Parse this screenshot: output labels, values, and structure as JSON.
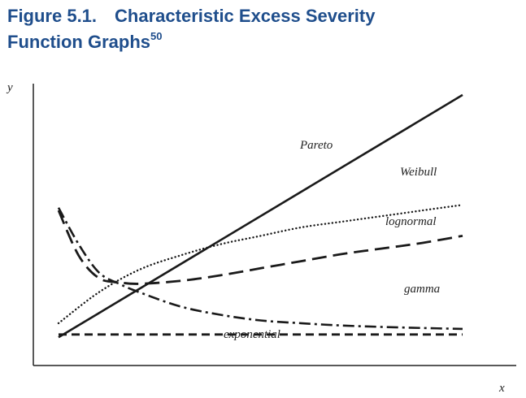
{
  "figure": {
    "number": "Figure 5.1.",
    "title_main": "Characteristic Excess Severity",
    "title_line2": "Function Graphs",
    "footnote_ref": "50"
  },
  "chart_data": {
    "type": "line",
    "xlabel": "x",
    "ylabel": "y",
    "xlim": [
      0,
      10
    ],
    "ylim": [
      0,
      10
    ],
    "axis_ticks": false,
    "grid": false,
    "legend": "none",
    "series": [
      {
        "name": "Pareto",
        "style": "solid",
        "x": [
          0,
          10
        ],
        "y": [
          1.0,
          9.6
        ]
      },
      {
        "name": "Weibull",
        "style": "dotted",
        "x": [
          0,
          1,
          2,
          3,
          4,
          5,
          6,
          7,
          8,
          9,
          10
        ],
        "y": [
          1.5,
          2.6,
          3.4,
          3.9,
          4.3,
          4.6,
          4.9,
          5.1,
          5.3,
          5.5,
          5.7
        ]
      },
      {
        "name": "lognormal",
        "style": "long-dash",
        "x": [
          0,
          0.5,
          1,
          1.5,
          2,
          3,
          4,
          5,
          6,
          7,
          8,
          9,
          10
        ],
        "y": [
          5.5,
          3.9,
          3.1,
          2.95,
          2.9,
          3.0,
          3.2,
          3.45,
          3.7,
          3.95,
          4.15,
          4.35,
          4.6
        ]
      },
      {
        "name": "gamma",
        "style": "dash-dot",
        "x": [
          0,
          0.5,
          1,
          1.5,
          2,
          3,
          4,
          5,
          6,
          7,
          8,
          9,
          10
        ],
        "y": [
          5.6,
          4.3,
          3.3,
          2.9,
          2.6,
          2.1,
          1.8,
          1.6,
          1.5,
          1.42,
          1.37,
          1.33,
          1.3
        ]
      },
      {
        "name": "exponential",
        "style": "short-dash",
        "x": [
          0,
          10
        ],
        "y": [
          1.1,
          1.1
        ]
      }
    ]
  }
}
